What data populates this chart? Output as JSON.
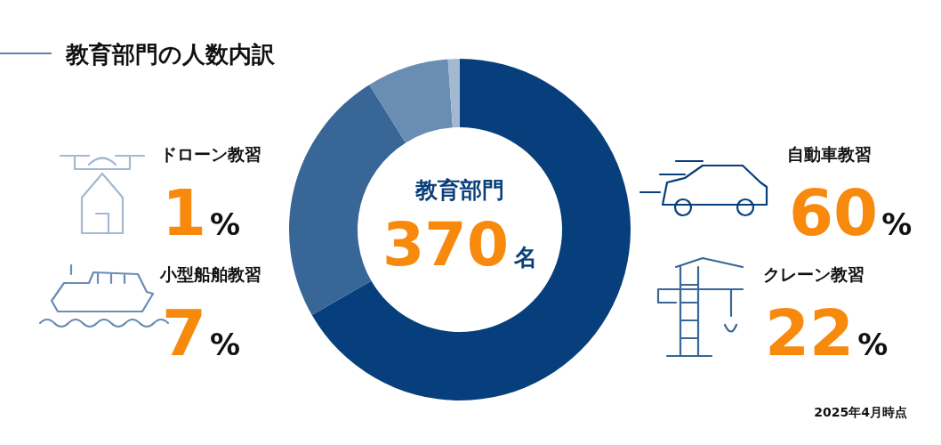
{
  "chart_data": {
    "type": "donut",
    "title": "教育部門の人数内訳",
    "categories": [
      "自動車教習",
      "クレーン教習",
      "小型船舶教習",
      "ドローン教習"
    ],
    "values": [
      60,
      22,
      7,
      1
    ],
    "colors": [
      "#063f7c",
      "#376697",
      "#6a8db3",
      "#a3b9d1"
    ],
    "value_labels": [
      "60%",
      "22%",
      "7%",
      "1%"
    ],
    "legend": "left right",
    "annotations": [
      "教育部門",
      "370名",
      "2025年4月時点"
    ]
  }
}
